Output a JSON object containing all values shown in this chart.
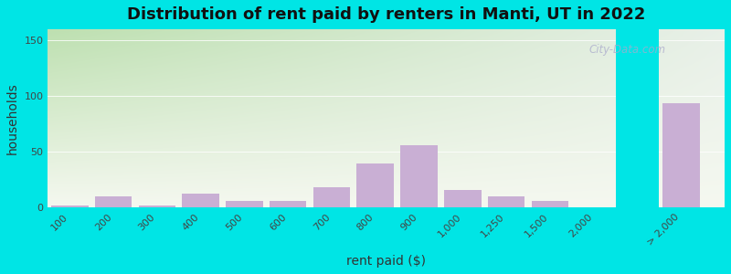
{
  "title": "Distribution of rent paid by renters in Manti, UT in 2022",
  "xlabel": "rent paid ($)",
  "ylabel": "households",
  "bar_labels": [
    "100",
    "200",
    "300",
    "400",
    "500",
    "600",
    "700",
    "800",
    "900",
    "1,000",
    "1,250",
    "1,500",
    "2,000",
    "> 2,000"
  ],
  "bar_values": [
    2,
    10,
    2,
    13,
    6,
    6,
    18,
    40,
    56,
    16,
    10,
    6,
    0,
    94
  ],
  "bar_color": "#c9afd4",
  "bg_color_outer": "#00e5e5",
  "bg_color_top_left": "#bde0b0",
  "bg_color_top_right": "#e8f0e8",
  "bg_color_bottom": "#f5f8f0",
  "yticks": [
    0,
    50,
    100,
    150
  ],
  "ylim": [
    0,
    160
  ],
  "title_fontsize": 13,
  "axis_label_fontsize": 10,
  "tick_fontsize": 8,
  "watermark_text": "City-Data.com",
  "gap_color": "#00e5e5",
  "bar_positions": [
    0,
    1,
    2,
    3,
    4,
    5,
    6,
    7,
    8,
    9,
    10,
    11,
    12,
    14
  ],
  "xlim": [
    -0.5,
    15
  ]
}
